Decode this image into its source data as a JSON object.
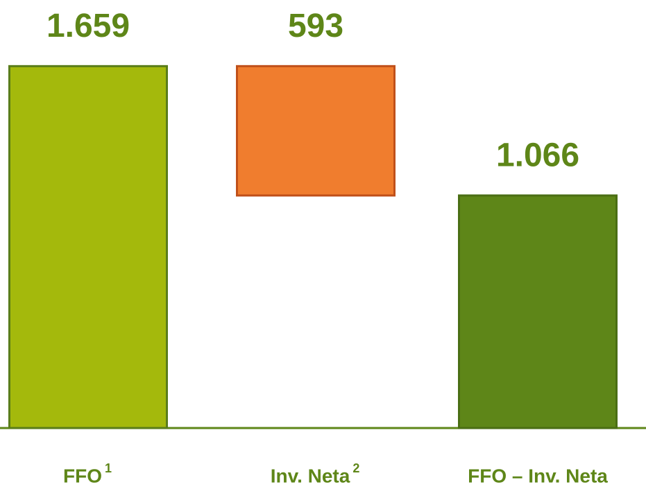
{
  "chart_data": {
    "type": "waterfall",
    "categories": [
      "FFO",
      "Inv. Neta",
      "FFO – Inv. Neta"
    ],
    "category_notes": [
      "1",
      "2",
      null
    ],
    "values": [
      1659,
      593,
      1066
    ],
    "value_labels": [
      "1.659",
      "593",
      "1.066"
    ],
    "measures": [
      "absolute",
      "decrease",
      "total"
    ],
    "colors": [
      "#a4b90c",
      "#f07d2e",
      "#5e8618"
    ],
    "ylim": [
      0,
      1800
    ]
  }
}
